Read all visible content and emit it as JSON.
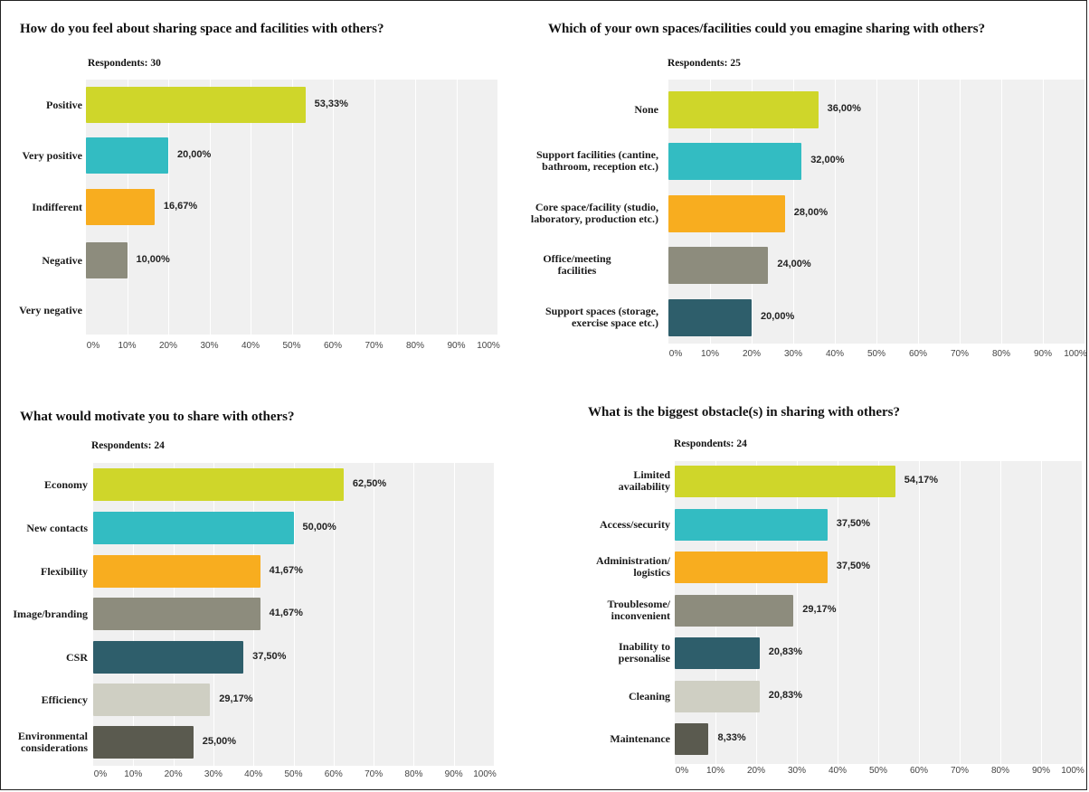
{
  "colors": [
    "#cfd62a",
    "#33bcc2",
    "#f8ad1f",
    "#8d8c7d",
    "#2e5e6b",
    "#cfcfc3",
    "#5a5a4f"
  ],
  "chart_data": [
    {
      "type": "bar",
      "title": "How do you feel about sharing space and facilities with others?",
      "respondents": "Respondents: 30",
      "categories": [
        "Positive",
        "Very positive",
        "Indifferent",
        "Negative",
        "Very negative"
      ],
      "values": [
        53.33,
        20.0,
        16.67,
        10.0,
        0
      ],
      "value_labels": [
        "53,33%",
        "20,00%",
        "16,67%",
        "10,00%",
        ""
      ],
      "xlim": [
        0,
        100
      ],
      "ticks": [
        "0%",
        "10%",
        "20%",
        "30%",
        "40%",
        "50%",
        "60%",
        "70%",
        "80%",
        "90%",
        "100%"
      ],
      "grid": true
    },
    {
      "type": "bar",
      "title": "Which of your own spaces/facilities could you emagine sharing with others?",
      "respondents": "Respondents: 25",
      "categories": [
        "None",
        "Support facilities (cantine,\nbathroom, reception etc.)",
        "Core space/facility (studio,\nlaboratory, production etc.)",
        "Office/meeting\nfacilities",
        "Support spaces (storage,\nexercise space etc.)"
      ],
      "values": [
        36.0,
        32.0,
        28.0,
        24.0,
        20.0
      ],
      "value_labels": [
        "36,00%",
        "32,00%",
        "28,00%",
        "24,00%",
        "20,00%"
      ],
      "xlim": [
        0,
        100
      ],
      "ticks": [
        "0%",
        "10%",
        "20%",
        "30%",
        "40%",
        "50%",
        "60%",
        "70%",
        "80%",
        "90%",
        "100%"
      ],
      "grid": true
    },
    {
      "type": "bar",
      "title": "What would motivate you to share with others?",
      "respondents": "Respondents: 24",
      "categories": [
        "Economy",
        "New contacts",
        "Flexibility",
        "Image/branding",
        "CSR",
        "Efficiency",
        "Environmental\nconsiderations"
      ],
      "values": [
        62.5,
        50.0,
        41.67,
        41.67,
        37.5,
        29.17,
        25.0
      ],
      "value_labels": [
        "62,50%",
        "50,00%",
        "41,67%",
        "41,67%",
        "37,50%",
        "29,17%",
        "25,00%"
      ],
      "xlim": [
        0,
        100
      ],
      "ticks": [
        "0%",
        "10%",
        "20%",
        "30%",
        "40%",
        "50%",
        "60%",
        "70%",
        "80%",
        "90%",
        "100%"
      ],
      "grid": true
    },
    {
      "type": "bar",
      "title": "What is the biggest obstacle(s) in sharing with others?",
      "respondents": "Respondents: 24",
      "categories": [
        "Limited\navailability",
        "Access/security",
        "Administration/\nlogistics",
        "Troublesome/\ninconvenient",
        "Inability to\npersonalise",
        "Cleaning",
        "Maintenance"
      ],
      "values": [
        54.17,
        37.5,
        37.5,
        29.17,
        20.83,
        20.83,
        8.33
      ],
      "value_labels": [
        "54,17%",
        "37,50%",
        "37,50%",
        "29,17%",
        "20,83%",
        "20,83%",
        "8,33%"
      ],
      "xlim": [
        0,
        100
      ],
      "ticks": [
        "0%",
        "10%",
        "20%",
        "30%",
        "40%",
        "50%",
        "60%",
        "70%",
        "80%",
        "90%",
        "100%"
      ],
      "grid": true
    }
  ]
}
